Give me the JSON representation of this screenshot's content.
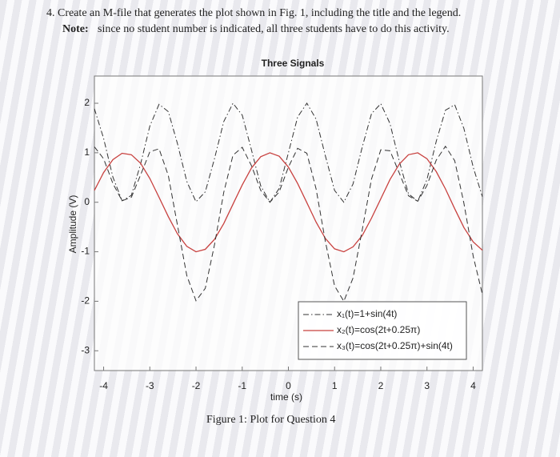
{
  "document": {
    "question": "4. Create an M-file that generates the plot shown in Fig. 1, including the title and the legend.",
    "note_label": "Note:",
    "note": "since no student number is indicated, all three students have to do this activity.",
    "caption": "Figure 1: Plot for Question 4"
  },
  "chart_data": {
    "type": "line",
    "title": "Three Signals",
    "x_label": "time (s)",
    "y_label": "Amplitude (V)",
    "x": [
      -4.2,
      -4.0,
      -3.8,
      -3.6,
      -3.4,
      -3.2,
      -3.0,
      -2.8,
      -2.6,
      -2.4,
      -2.2,
      -2.0,
      -1.8,
      -1.6,
      -1.4,
      -1.2,
      -1.0,
      -0.8,
      -0.6,
      -0.4,
      -0.2,
      0,
      0.2,
      0.4,
      0.6,
      0.8,
      1.0,
      1.2,
      1.4,
      1.6,
      1.8,
      2.0,
      2.2,
      2.4,
      2.6,
      2.8,
      3.0,
      3.2,
      3.4,
      3.6,
      3.8,
      4.0,
      4.2
    ],
    "series": [
      {
        "name": "x₁(t)=1+sin(4t)",
        "color": "#333333",
        "style": "dashdot",
        "values": [
          1.89,
          1.29,
          0.51,
          0.03,
          0.14,
          0.77,
          1.54,
          1.98,
          1.83,
          1.18,
          0.42,
          0.01,
          0.21,
          0.88,
          1.63,
          2.0,
          1.76,
          1.06,
          0.33,
          0.0,
          0.28,
          1.0,
          1.72,
          2.0,
          1.68,
          0.94,
          0.24,
          0.0,
          0.37,
          1.12,
          1.79,
          1.99,
          1.59,
          0.83,
          0.17,
          0.02,
          0.46,
          1.23,
          1.86,
          1.97,
          1.49,
          0.71,
          0.11
        ]
      },
      {
        "name": "x₂(t)=cos(2t+0.25π)",
        "color": "#c8413f",
        "style": "solid",
        "values": [
          0.24,
          0.6,
          0.86,
          0.99,
          0.96,
          0.79,
          0.48,
          0.1,
          -0.29,
          -0.64,
          -0.89,
          -1.0,
          -0.95,
          -0.75,
          -0.43,
          -0.04,
          0.35,
          0.69,
          0.92,
          1.0,
          0.93,
          0.71,
          0.38,
          -0.01,
          -0.4,
          -0.73,
          -0.94,
          -1.0,
          -0.9,
          -0.67,
          -0.32,
          0.07,
          0.46,
          0.77,
          0.96,
          1.0,
          0.88,
          0.62,
          0.27,
          -0.13,
          -0.51,
          -0.8,
          -0.97
        ]
      },
      {
        "name": "x₃(t)=cos(2t+0.25π)+sin(4t)",
        "color": "#333333",
        "style": "dashed",
        "values": [
          1.12,
          0.88,
          0.38,
          0.03,
          0.1,
          0.55,
          1.02,
          1.08,
          0.54,
          -0.47,
          -1.48,
          -1.99,
          -1.74,
          -0.86,
          0.2,
          0.95,
          1.11,
          0.74,
          0.24,
          0.0,
          0.21,
          0.71,
          1.09,
          0.99,
          0.27,
          -0.79,
          -1.69,
          -2.0,
          -1.53,
          -0.55,
          0.47,
          1.06,
          1.04,
          0.59,
          0.13,
          0.02,
          0.34,
          0.85,
          1.13,
          0.84,
          -0.02,
          -1.09,
          -1.86
        ]
      }
    ],
    "xlim": [
      -4.2,
      4.2
    ],
    "ylim": [
      -3.4,
      2.55
    ],
    "xticks": [
      -4,
      -3,
      -2,
      -1,
      0,
      1,
      2,
      3,
      4
    ],
    "yticks": [
      -3,
      -2,
      -1,
      0,
      1,
      2
    ],
    "legend": "lower right",
    "grid": false
  }
}
